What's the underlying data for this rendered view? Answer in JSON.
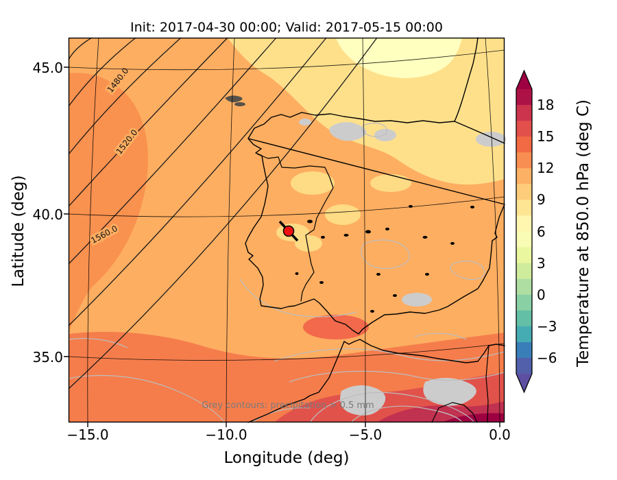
{
  "figure": {
    "title": "Init: 2017-04-30 00:00; Valid: 2017-05-15 00:00"
  },
  "axes": {
    "xlabel": "Longitude (deg)",
    "ylabel": "Latitude (deg)",
    "x_ticks": [
      "−15.0",
      "−10.0",
      "−5.0",
      "0.0"
    ],
    "y_ticks": [
      "45.0",
      "40.0",
      "35.0"
    ]
  },
  "map": {
    "annotation": "Grey contours: precipitation > 0.5 mm",
    "geopotential_contour_labels": [
      "1480.0",
      "1520.0",
      "1560.0"
    ],
    "marker": {
      "shape": "circle-with-slash",
      "color": "#ee1111",
      "approx_lon": -7.7,
      "approx_lat": 39.4
    }
  },
  "colorbar": {
    "label": "Temperature at 850.0 hPa (deg C)",
    "ticks": [
      18,
      15,
      12,
      9,
      6,
      3,
      0,
      -3,
      -6
    ],
    "value_max": 19.5,
    "value_min": -7.5,
    "band_colors_top_to_bottom": [
      "#ad1246",
      "#cc344d",
      "#e1504a",
      "#f26a44",
      "#f98e52",
      "#fdb164",
      "#fecd7b",
      "#fee594",
      "#fff6b0",
      "#f8fcb4",
      "#eaf79f",
      "#cfec9d",
      "#afdea3",
      "#89d0a5",
      "#63c0a6",
      "#46acb4",
      "#397eb8",
      "#525faa"
    ],
    "extend_top_color": "#9e0142",
    "extend_bottom_color": "#5e4fa2"
  },
  "chart_data": {
    "type": "heatmap",
    "title": "Init: 2017-04-30 00:00; Valid: 2017-05-15 00:00",
    "xlabel": "Longitude (deg)",
    "ylabel": "Latitude (deg)",
    "xlim": [
      -15.7,
      0.2
    ],
    "ylim": [
      32.7,
      46.0
    ],
    "x_ticks": [
      -15.0,
      -10.0,
      -5.0,
      0.0
    ],
    "y_ticks": [
      45.0,
      40.0,
      35.0
    ],
    "colorbar_label": "Temperature at 850.0 hPa (deg C)",
    "colorbar_ticks": [
      18,
      15,
      12,
      9,
      6,
      3,
      0,
      -3,
      -6
    ],
    "geopotential_height_contours": [
      1480.0,
      1520.0,
      1560.0
    ],
    "precipitation_contour_threshold_mm": 0.5
  }
}
